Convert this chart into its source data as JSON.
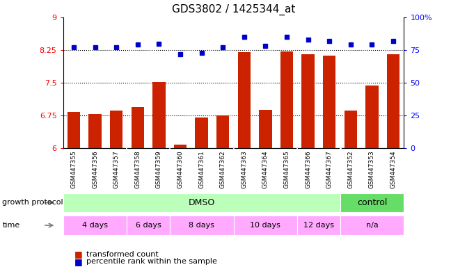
{
  "title": "GDS3802 / 1425344_at",
  "samples": [
    "GSM447355",
    "GSM447356",
    "GSM447357",
    "GSM447358",
    "GSM447359",
    "GSM447360",
    "GSM447361",
    "GSM447362",
    "GSM447363",
    "GSM447364",
    "GSM447365",
    "GSM447366",
    "GSM447367",
    "GSM447352",
    "GSM447353",
    "GSM447354"
  ],
  "red_values": [
    6.83,
    6.78,
    6.87,
    6.95,
    7.52,
    6.08,
    6.7,
    6.75,
    8.2,
    6.88,
    8.22,
    8.15,
    8.12,
    6.87,
    7.43,
    8.15
  ],
  "blue_values": [
    77,
    77,
    77,
    79,
    80,
    72,
    73,
    77,
    85,
    78,
    85,
    83,
    82,
    79,
    79,
    82
  ],
  "ylim_left": [
    6,
    9
  ],
  "ylim_right": [
    0,
    100
  ],
  "yticks_left": [
    6,
    6.75,
    7.5,
    8.25,
    9
  ],
  "yticks_right": [
    0,
    25,
    50,
    75,
    100
  ],
  "ytick_labels_left": [
    "6",
    "6.75",
    "7.5",
    "8.25",
    "9"
  ],
  "ytick_labels_right": [
    "0",
    "25",
    "50",
    "75",
    "100%"
  ],
  "hlines": [
    6.75,
    7.5,
    8.25
  ],
  "bar_color": "#cc2200",
  "dot_color": "#0000cc",
  "bar_width": 0.6,
  "growth_protocol_label": "growth protocol",
  "time_label": "time",
  "dmso_color": "#bbffbb",
  "control_color": "#66dd66",
  "time_color": "#ffaaff",
  "separator_color": "#ffffff",
  "xtick_bg_color": "#d8d8d8",
  "time_groups": [
    {
      "label": "4 days",
      "start": 0,
      "end": 3
    },
    {
      "label": "6 days",
      "start": 3,
      "end": 5
    },
    {
      "label": "8 days",
      "start": 5,
      "end": 8
    },
    {
      "label": "10 days",
      "start": 8,
      "end": 11
    },
    {
      "label": "12 days",
      "start": 11,
      "end": 13
    },
    {
      "label": "n/a",
      "start": 13,
      "end": 16
    }
  ]
}
